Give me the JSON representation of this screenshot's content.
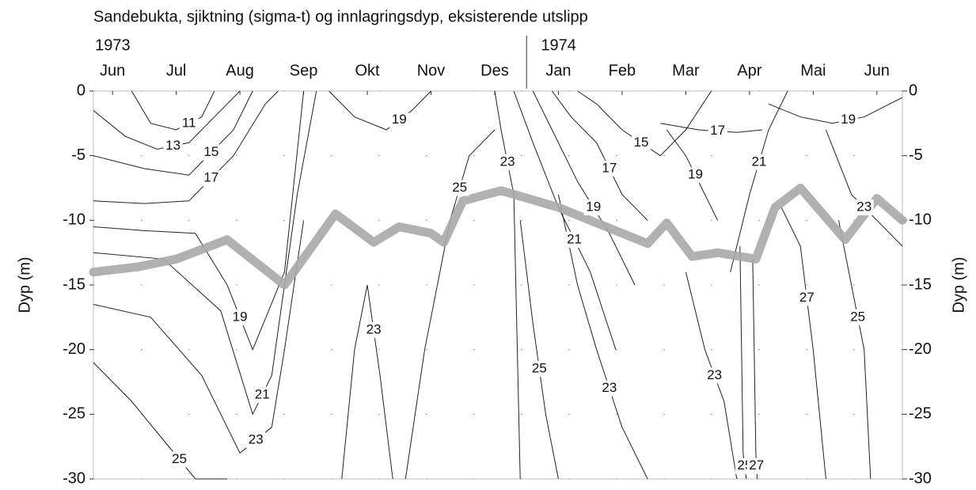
{
  "chart_data": {
    "type": "contour",
    "title": "Sandebukta, sjiktning (sigma-t) og innlagringsdyp, eksisterende utslipp",
    "years": [
      {
        "value": 0,
        "label": "1973"
      },
      {
        "value": 7,
        "label": "1974"
      }
    ],
    "xlim": [
      -0.3,
      12.4
    ],
    "xticks": [
      {
        "value": 0,
        "label": "Jun"
      },
      {
        "value": 1,
        "label": "Jul"
      },
      {
        "value": 2,
        "label": "Aug"
      },
      {
        "value": 3,
        "label": "Sep"
      },
      {
        "value": 4,
        "label": "Okt"
      },
      {
        "value": 5,
        "label": "Nov"
      },
      {
        "value": 6,
        "label": "Des"
      },
      {
        "value": 7,
        "label": "Jan"
      },
      {
        "value": 8,
        "label": "Feb"
      },
      {
        "value": 9,
        "label": "Mar"
      },
      {
        "value": 10,
        "label": "Apr"
      },
      {
        "value": 11,
        "label": "Mai"
      },
      {
        "value": 12,
        "label": "Jun"
      }
    ],
    "ylim": [
      -30,
      0
    ],
    "yticks": [
      0,
      -5,
      -10,
      -15,
      -20,
      -25,
      -30
    ],
    "y2lim": [
      -30,
      0
    ],
    "y2ticks": [
      0,
      -5,
      -10,
      -15,
      -20,
      -25,
      -30
    ],
    "y_label": "Dyp (m)",
    "y2_label": "Dyp (m)",
    "grid": true,
    "contour_color": "#222222",
    "contours": [
      {
        "level": 11,
        "x": [
          0.3,
          0.6,
          1.0,
          1.4,
          1.6
        ],
        "y": [
          0,
          -2.5,
          -3,
          -2,
          0
        ]
      },
      {
        "level": 13,
        "x": [
          -0.3,
          0.2,
          0.7,
          1.2,
          1.8,
          2.0
        ],
        "y": [
          -1.5,
          -3.5,
          -4.5,
          -4,
          -1,
          0
        ]
      },
      {
        "level": 15,
        "x": [
          -0.3,
          0.5,
          1.2,
          1.9,
          2.2
        ],
        "y": [
          -5,
          -6,
          -6.5,
          -3,
          0
        ]
      },
      {
        "level": 17,
        "x": [
          -0.3,
          0.5,
          1.2,
          1.9,
          2.4,
          2.6
        ],
        "y": [
          -8.5,
          -8.7,
          -8.5,
          -5,
          -1,
          0
        ]
      },
      {
        "level": 19,
        "x": [
          -0.3,
          0.5,
          1.3,
          1.8,
          2.2,
          2.7,
          3.0
        ],
        "y": [
          -10.5,
          -10.8,
          -11,
          -15,
          -20,
          -14,
          0
        ]
      },
      {
        "level": 21,
        "x": [
          -0.3,
          0.8,
          1.7,
          2.2,
          2.5,
          2.9,
          3.2
        ],
        "y": [
          -12.5,
          -13,
          -17,
          -25,
          -22,
          -8,
          0
        ]
      },
      {
        "level": 23,
        "x": [
          -0.3,
          0.6,
          1.4,
          2.0,
          2.5,
          2.7,
          3.0
        ],
        "y": [
          -16.5,
          -17.5,
          -22,
          -28,
          -26,
          -20,
          -10
        ]
      },
      {
        "level": 25,
        "x": [
          -0.3,
          0.3,
          0.8,
          1.3,
          1.8
        ],
        "y": [
          -21,
          -24,
          -27,
          -30,
          -30
        ]
      },
      {
        "level": 19,
        "x": [
          3.4,
          3.8,
          4.3,
          4.7,
          5.0
        ],
        "y": [
          0,
          -2,
          -3,
          -1.5,
          0
        ]
      },
      {
        "level": 23,
        "x": [
          3.6,
          3.8,
          4.0,
          4.2,
          4.4
        ],
        "y": [
          -30,
          -20,
          -15,
          -22,
          -30
        ]
      },
      {
        "level": 25,
        "x": [
          4.6,
          4.9,
          5.3,
          5.6,
          6.0
        ],
        "y": [
          -30,
          -20,
          -10,
          -5,
          -3
        ]
      },
      {
        "level": 23,
        "x": [
          6.0,
          6.1,
          6.3,
          6.4
        ],
        "y": [
          0,
          -3,
          -8,
          -30
        ]
      },
      {
        "level": 21,
        "x": [
          6.3,
          6.6,
          7.0,
          7.5,
          7.9
        ],
        "y": [
          0,
          -4,
          -9,
          -14,
          -20
        ]
      },
      {
        "level": 19,
        "x": [
          6.6,
          6.9,
          7.3,
          7.8,
          8.2
        ],
        "y": [
          0,
          -3,
          -7,
          -11,
          -15
        ]
      },
      {
        "level": 17,
        "x": [
          6.9,
          7.2,
          7.6,
          8.0,
          8.4
        ],
        "y": [
          0,
          -2,
          -4,
          -8,
          -10
        ]
      },
      {
        "level": 15,
        "x": [
          7.3,
          7.6,
          8.0,
          8.6,
          9.0,
          9.4
        ],
        "y": [
          0,
          -1,
          -3,
          -5,
          -3,
          0
        ]
      },
      {
        "level": 17,
        "x": [
          8.6,
          9.2,
          9.8,
          10.2
        ],
        "y": [
          -2.5,
          -3,
          -3.2,
          -3
        ]
      },
      {
        "level": 19,
        "x": [
          8.7,
          9.0,
          9.3,
          9.5
        ],
        "y": [
          -3,
          -5,
          -8,
          -10
        ]
      },
      {
        "level": 23,
        "x": [
          7.0,
          7.3,
          7.6,
          8.0,
          8.4
        ],
        "y": [
          -8,
          -15,
          -20,
          -26,
          -30
        ]
      },
      {
        "level": 25,
        "x": [
          6.4,
          6.6,
          6.8,
          7.0
        ],
        "y": [
          -10,
          -18,
          -25,
          -30
        ]
      },
      {
        "level": 23,
        "x": [
          9.0,
          9.3,
          9.6,
          9.8
        ],
        "y": [
          -14,
          -20,
          -24,
          -30
        ]
      },
      {
        "level": 25,
        "x": [
          9.85,
          9.9,
          9.95
        ],
        "y": [
          -12,
          -28,
          -30
        ]
      },
      {
        "level": 27,
        "x": [
          10.05,
          10.1,
          10.12
        ],
        "y": [
          -13,
          -28,
          -30
        ]
      },
      {
        "level": 21,
        "x": [
          9.7,
          10.0,
          10.3,
          10.6
        ],
        "y": [
          -14,
          -8,
          -3,
          0
        ]
      },
      {
        "level": 19,
        "x": [
          10.3,
          10.8,
          11.3,
          11.8,
          12.2,
          12.4
        ],
        "y": [
          -1,
          -2,
          -2.5,
          -2,
          -1,
          -0.5
        ]
      },
      {
        "level": 23,
        "x": [
          11.2,
          11.6,
          12.0,
          12.4
        ],
        "y": [
          -3,
          -8,
          -10,
          -12
        ]
      },
      {
        "level": 25,
        "x": [
          11.4,
          11.6,
          11.8,
          11.9
        ],
        "y": [
          -10,
          -15,
          -20,
          -30
        ]
      },
      {
        "level": 27,
        "x": [
          10.5,
          10.8,
          11.0,
          11.2
        ],
        "y": [
          -9,
          -12,
          -20,
          -30
        ]
      }
    ],
    "series": [
      {
        "color": "#a9a9a9",
        "x": [
          -0.3,
          0.4,
          1.0,
          1.8,
          2.7,
          3.5,
          4.1,
          4.5,
          5.0,
          5.2,
          5.5,
          6.1,
          7.0,
          8.0,
          8.4,
          8.7,
          9.1,
          9.5,
          10.1,
          10.4,
          10.8,
          11.5,
          12.0,
          12.4
        ],
        "values": [
          -14,
          -13.6,
          -13,
          -11.5,
          -15,
          -9.5,
          -11.7,
          -10.5,
          -11,
          -11.7,
          -8.5,
          -7.7,
          -9,
          -11,
          -11.8,
          -10.2,
          -12.8,
          -12.5,
          -13,
          -9,
          -7.5,
          -11.5,
          -8.3,
          -10
        ]
      }
    ]
  }
}
